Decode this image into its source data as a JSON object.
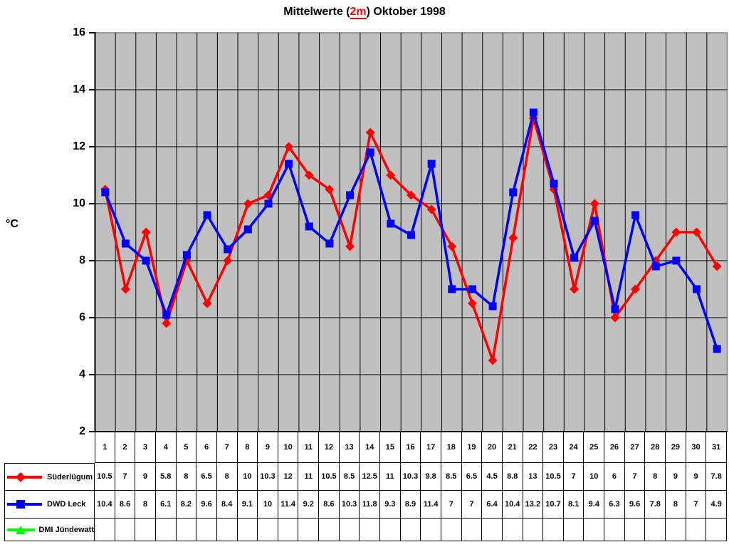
{
  "title": {
    "prefix": "Mittelwerte (",
    "highlight": "2m",
    "suffix": ") Oktober 1998"
  },
  "y_axis": {
    "label": "°C",
    "ticks": [
      16,
      14,
      12,
      10,
      8,
      6,
      4,
      2
    ]
  },
  "colors": {
    "plot_background": "#C0C0C0",
    "gridline": "#000000",
    "axis": "#000000",
    "plot_border": "#808080",
    "series_1": "#FF0000",
    "series_2": "#0000FF",
    "series_3": "#00FF00",
    "title_highlight": "#FF0000"
  },
  "chart_data": {
    "type": "line",
    "title": "Mittelwerte (2m) Oktober 1998",
    "xlabel": "",
    "ylabel": "°C",
    "ylim": [
      2,
      16
    ],
    "y_step": 2,
    "grid": true,
    "legend_position": "bottom-left-table",
    "categories": [
      1,
      2,
      3,
      4,
      5,
      6,
      7,
      8,
      9,
      10,
      11,
      12,
      13,
      14,
      15,
      16,
      17,
      18,
      19,
      20,
      21,
      22,
      23,
      24,
      25,
      26,
      27,
      28,
      29,
      30,
      31
    ],
    "series": [
      {
        "name": "Süderlügum",
        "color": "#FF0000",
        "marker": "diamond",
        "values": [
          10.5,
          7,
          9,
          5.8,
          8,
          6.5,
          8,
          10,
          10.3,
          12,
          11,
          10.5,
          8.5,
          12.5,
          11,
          10.3,
          9.8,
          8.5,
          6.5,
          4.5,
          8.8,
          13,
          10.5,
          7,
          10,
          6,
          7,
          8,
          9,
          9,
          7.8
        ]
      },
      {
        "name": "DWD Leck",
        "color": "#0000FF",
        "marker": "square",
        "values": [
          10.4,
          8.6,
          8,
          6.1,
          8.2,
          9.6,
          8.4,
          9.1,
          10,
          11.4,
          9.2,
          8.6,
          10.3,
          11.8,
          9.3,
          8.9,
          11.4,
          7,
          7,
          6.4,
          10.4,
          13.2,
          10.7,
          8.1,
          9.4,
          6.3,
          9.6,
          7.8,
          8,
          7,
          4.9
        ]
      },
      {
        "name": "DMI Jündewatt",
        "color": "#00FF00",
        "marker": "triangle",
        "values": []
      }
    ]
  }
}
